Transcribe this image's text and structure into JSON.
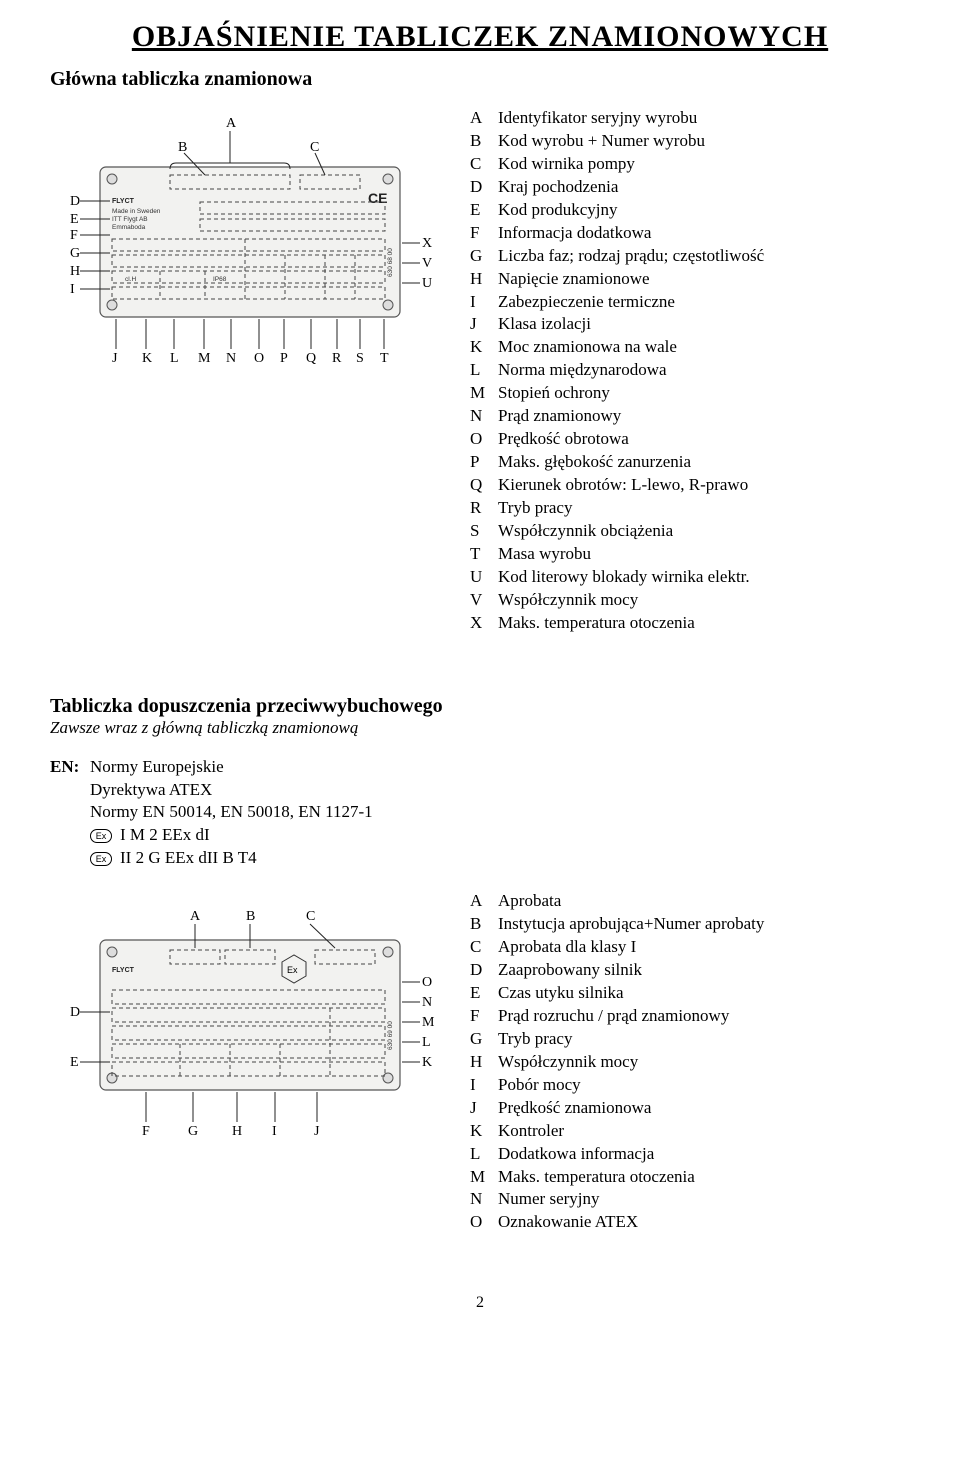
{
  "title": "OBJAŚNIENIE TABLICZEK ZNAMIONOWYCH",
  "section1": {
    "heading": "Główna tabliczka znamionowa",
    "items": [
      {
        "k": "A",
        "v": "Identyfikator seryjny wyrobu"
      },
      {
        "k": "B",
        "v": "Kod wyrobu + Numer wyrobu"
      },
      {
        "k": "C",
        "v": "Kod wirnika pompy"
      },
      {
        "k": "D",
        "v": "Kraj pochodzenia"
      },
      {
        "k": "E",
        "v": "Kod produkcyjny"
      },
      {
        "k": "F",
        "v": "Informacja dodatkowa"
      },
      {
        "k": "G",
        "v": "Liczba faz; rodzaj prądu; częstotliwość"
      },
      {
        "k": "H",
        "v": "Napięcie znamionowe"
      },
      {
        "k": "I",
        "v": "Zabezpieczenie termiczne"
      },
      {
        "k": "J",
        "v": "Klasa izolacji"
      },
      {
        "k": "K",
        "v": "Moc znamionowa na wale"
      },
      {
        "k": "L",
        "v": "Norma międzynarodowa"
      },
      {
        "k": "M",
        "v": "Stopień ochrony"
      },
      {
        "k": "N",
        "v": "Prąd znamionowy"
      },
      {
        "k": "O",
        "v": "Prędkość obrotowa"
      },
      {
        "k": "P",
        "v": "Maks. głębokość zanurzenia"
      },
      {
        "k": "Q",
        "v": "Kierunek obrotów: L-lewo, R-prawo"
      },
      {
        "k": "R",
        "v": "Tryb pracy"
      },
      {
        "k": "S",
        "v": "Współczynnik obciążenia"
      },
      {
        "k": "T",
        "v": "Masa wyrobu"
      },
      {
        "k": "U",
        "v": "Kod literowy blokady wirnika elektr."
      },
      {
        "k": "V",
        "v": "Współczynnik mocy"
      },
      {
        "k": "X",
        "v": "Maks. temperatura otoczenia"
      }
    ]
  },
  "section2": {
    "heading": "Tabliczka dopuszczenia przeciwwybuchowego",
    "subheading": "Zawsze wraz z główną tabliczką znamionową",
    "en_label": "EN:",
    "en_lines": [
      "Normy Europejskie",
      "Dyrektywa ATEX",
      "Normy EN 50014, EN 50018, EN 1127-1"
    ],
    "en_ex_lines": [
      "I M 2 EEx dI",
      "II 2 G EEx dII B T4"
    ],
    "items": [
      {
        "k": "A",
        "v": "Aprobata"
      },
      {
        "k": "B",
        "v": "Instytucja aprobująca+Numer aprobaty"
      },
      {
        "k": "C",
        "v": "Aprobata dla klasy I"
      },
      {
        "k": "D",
        "v": "Zaaprobowany silnik"
      },
      {
        "k": "E",
        "v": "Czas utyku silnika"
      },
      {
        "k": "F",
        "v": "Prąd rozruchu / prąd znamionowy"
      },
      {
        "k": "G",
        "v": "Tryb pracy"
      },
      {
        "k": "H",
        "v": "Współczynnik mocy"
      },
      {
        "k": "I",
        "v": "Pobór mocy"
      },
      {
        "k": "J",
        "v": "Prędkość znamionowa"
      },
      {
        "k": "K",
        "v": "Kontroler"
      },
      {
        "k": "L",
        "v": "Dodatkowa informacja"
      },
      {
        "k": "M",
        "v": "Maks. temperatura otoczenia"
      },
      {
        "k": "N",
        "v": "Numer seryjny"
      },
      {
        "k": "O",
        "v": "Oznakowanie ATEX"
      }
    ]
  },
  "page_number": "2",
  "diagram1": {
    "letters_top": [
      "A",
      "B",
      "C"
    ],
    "letters_left": [
      "D",
      "E",
      "F",
      "G",
      "H",
      "I"
    ],
    "letters_right": [
      "X",
      "V",
      "U"
    ],
    "letters_bottom": [
      "J",
      "K",
      "L",
      "M",
      "N",
      "O",
      "P",
      "Q",
      "R",
      "S",
      "T"
    ],
    "plate_texts": {
      "brand": "FLYCT",
      "made": "Made in Sweden",
      "co": "ITT Flygt AB",
      "city": "Emmaboda",
      "ip": "IP68",
      "clh": "cl.H",
      "side": "630 68 00"
    }
  },
  "diagram2": {
    "letters_top": [
      "A",
      "B",
      "C"
    ],
    "letters_left": [
      "D",
      "E"
    ],
    "letters_right": [
      "O",
      "N",
      "M",
      "L",
      "K"
    ],
    "letters_bottom": [
      "F",
      "G",
      "H",
      "I",
      "J"
    ],
    "plate_texts": {
      "brand": "FLYCT",
      "side": "630 69 00"
    }
  },
  "colors": {
    "bg": "#ffffff",
    "text": "#000000",
    "plate": "#f2f2f0",
    "stroke": "#555555"
  }
}
